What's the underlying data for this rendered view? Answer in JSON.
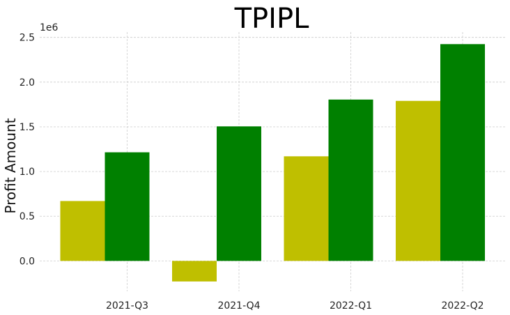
{
  "chart_data": {
    "type": "bar",
    "title": "TPIPL",
    "xlabel": "",
    "ylabel": "Profit Amount",
    "offset_text": "1e6",
    "categories": [
      "2021-Q3",
      "2021-Q4",
      "2022-Q1",
      "2022-Q2"
    ],
    "series": [
      {
        "values": [
          670000,
          -230000,
          1170000,
          1790000
        ],
        "color": "#bfbf00"
      },
      {
        "values": [
          1215000,
          1505000,
          1805000,
          2425000
        ],
        "color": "#008000"
      }
    ],
    "ylim": [
      -340000.0,
      2560000.0
    ],
    "yticks": [
      0,
      500000,
      1000000,
      1500000,
      2000000,
      2500000
    ],
    "ytick_labels": [
      "0.0",
      "0.5",
      "1.0",
      "1.5",
      "2.0",
      "2.5"
    ],
    "grid": true,
    "legend": "none"
  }
}
